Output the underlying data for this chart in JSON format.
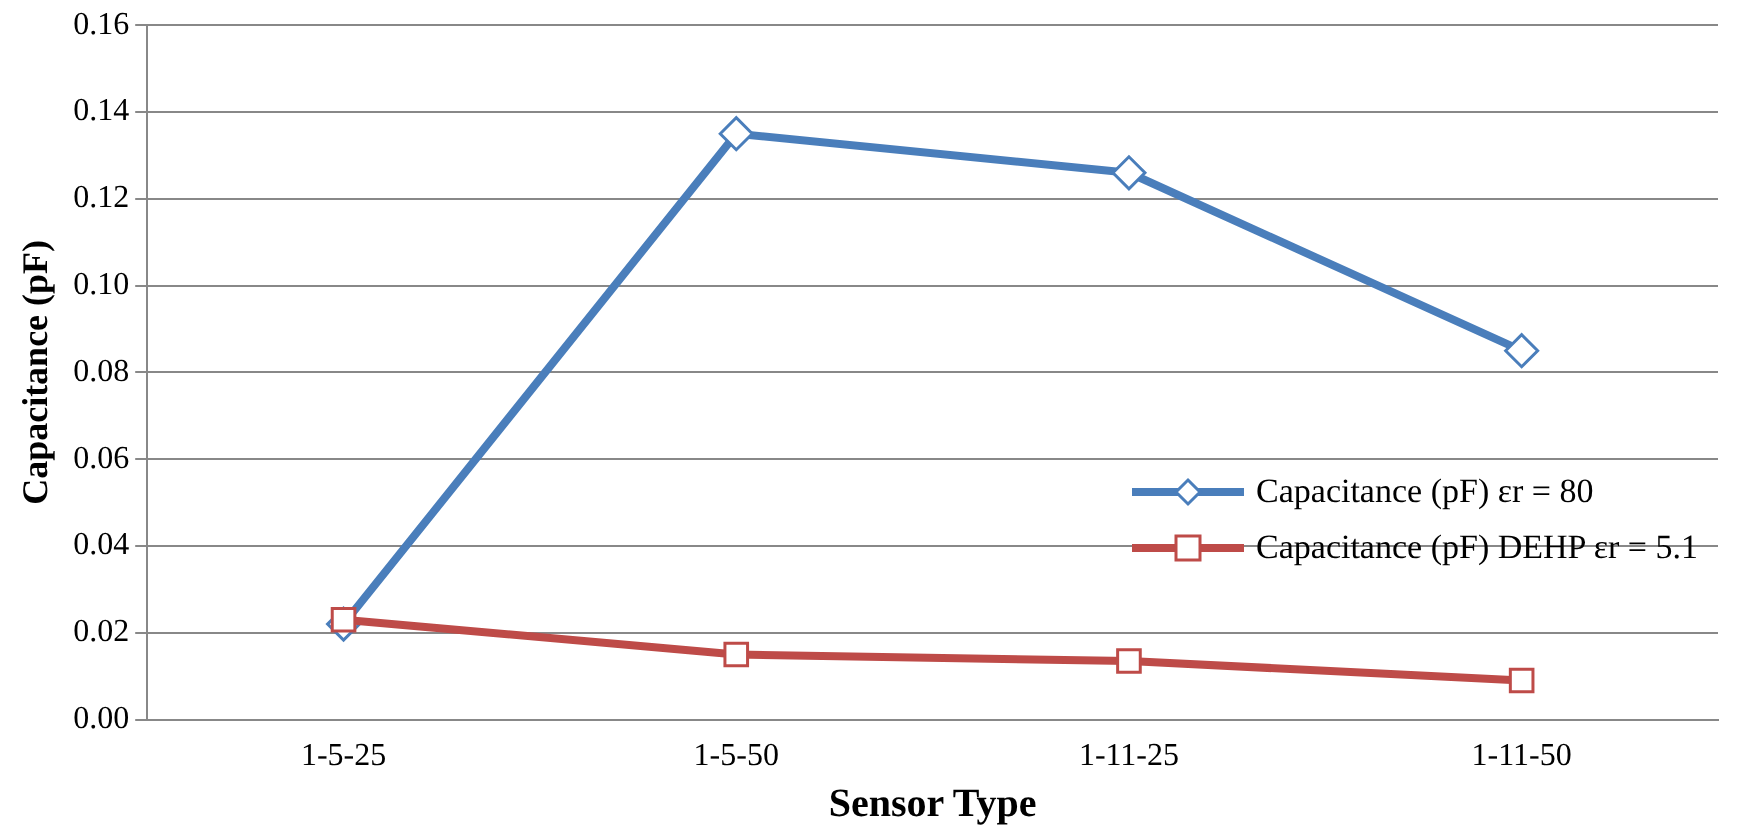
{
  "chart_data": {
    "type": "line",
    "xlabel": "Sensor Type",
    "ylabel": "Capacitance (pF)",
    "categories": [
      "1-5-25",
      "1-5-50",
      "1-11-25",
      "1-11-50"
    ],
    "series": [
      {
        "name": "Capacitance (pF) εr = 80",
        "color": "#4a7ebb",
        "marker": "diamond",
        "values": [
          0.022,
          0.135,
          0.126,
          0.085
        ]
      },
      {
        "name": "Capacitance (pF) DEHP εr = 5.1",
        "color": "#be4b48",
        "marker": "square",
        "values": [
          0.023,
          0.015,
          0.0135,
          0.009
        ]
      }
    ],
    "ylim": [
      0,
      0.16
    ],
    "yticks": [
      {
        "value": 0,
        "label": "0.00"
      },
      {
        "value": 0.02,
        "label": "0.02"
      },
      {
        "value": 0.04,
        "label": "0.04"
      },
      {
        "value": 0.06,
        "label": "0.06"
      },
      {
        "value": 0.08,
        "label": "0.08"
      },
      {
        "value": 0.1,
        "label": "0.10"
      },
      {
        "value": 0.12,
        "label": "0.12"
      },
      {
        "value": 0.14,
        "label": "0.14"
      },
      {
        "value": 0.16,
        "label": "0.16"
      }
    ],
    "grid": "y",
    "legend": "right",
    "line_style": "solid"
  }
}
